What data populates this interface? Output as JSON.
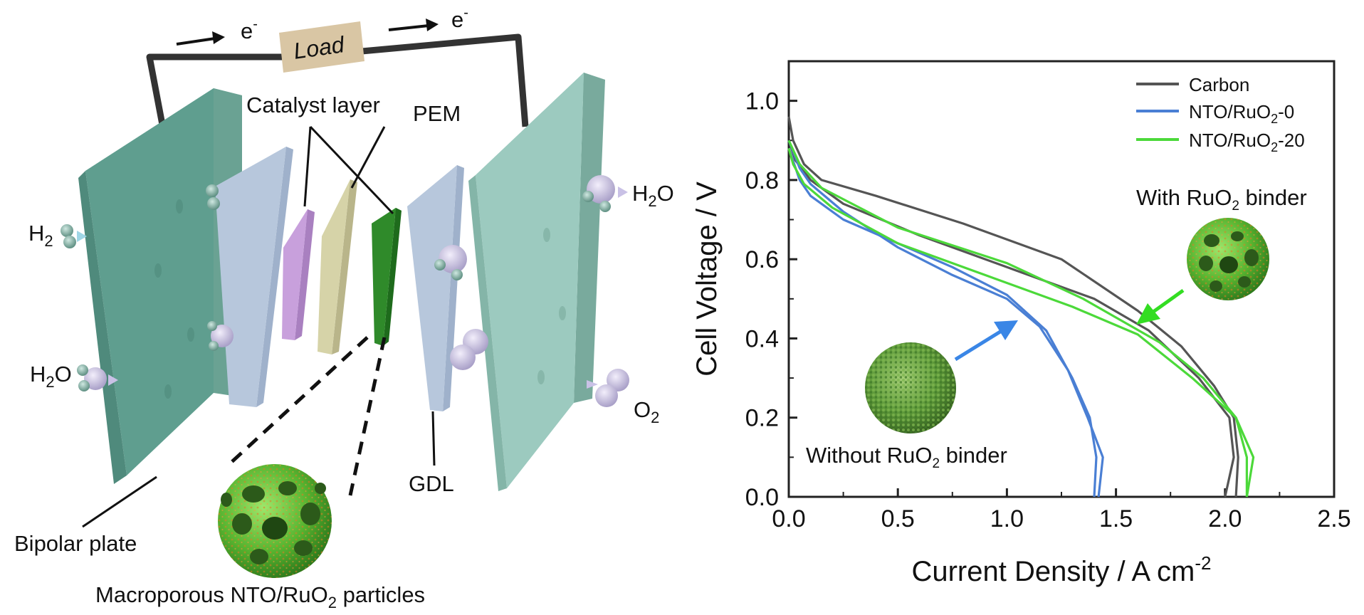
{
  "diagram": {
    "electron_label": "e",
    "electron_sup": "-",
    "load_label": "Load",
    "catalyst_layer_label": "Catalyst layer",
    "pem_label": "PEM",
    "gdl_label": "GDL",
    "bipolar_plate_label": "Bipolar plate",
    "particles_label_a": "Macroporous NTO/RuO",
    "particles_sub": "2",
    "particles_label_b": " particles",
    "h2_label": "H",
    "h2_sub": "2",
    "h2o_left_label": "H",
    "h2o_left_sub": "2",
    "h2o_left_suffix": "O",
    "h2o_right_label": "H",
    "h2o_right_sub": "2",
    "h2o_right_suffix": "O",
    "o2_label": "O",
    "o2_sub": "2",
    "colors": {
      "bipolar_plate": "#5f9e8f",
      "gdl": "#b7c7dc",
      "catalyst_anode": "#c8a0dc",
      "pem": "#d6d3a8",
      "catalyst_cathode": "#2f8a2a",
      "load_box": "#d9c6a4",
      "wire": "#333333",
      "particle_green": "#6cc43c",
      "particle_orange": "#e07b22"
    }
  },
  "chart_data": {
    "type": "line",
    "xlabel": "Current Density / A cm",
    "xlabel_sup": "-2",
    "ylabel": "Cell Voltage / V",
    "xlim": [
      0.0,
      2.5
    ],
    "ylim": [
      0.0,
      1.1
    ],
    "x_ticks": [
      "0.0",
      "0.5",
      "1.0",
      "1.5",
      "2.0",
      "2.5"
    ],
    "y_ticks": [
      "0.0",
      "0.2",
      "0.4",
      "0.6",
      "0.8",
      "1.0"
    ],
    "grid": false,
    "legend_position": "top-right",
    "series": [
      {
        "name": "Carbon",
        "name_sub": "",
        "name_suffix": "",
        "color": "#555555",
        "discharge": [
          [
            0.0,
            0.96
          ],
          [
            0.02,
            0.9
          ],
          [
            0.07,
            0.84
          ],
          [
            0.15,
            0.8
          ],
          [
            0.4,
            0.76
          ],
          [
            0.8,
            0.69
          ],
          [
            1.25,
            0.6
          ],
          [
            1.6,
            0.47
          ],
          [
            1.8,
            0.38
          ],
          [
            1.95,
            0.28
          ],
          [
            2.04,
            0.2
          ],
          [
            2.06,
            0.1
          ],
          [
            2.05,
            0.0
          ]
        ],
        "charge": [
          [
            2.0,
            0.0
          ],
          [
            2.04,
            0.1
          ],
          [
            2.02,
            0.2
          ],
          [
            1.88,
            0.3
          ],
          [
            1.65,
            0.42
          ],
          [
            1.4,
            0.5
          ],
          [
            1.0,
            0.58
          ],
          [
            0.6,
            0.66
          ],
          [
            0.25,
            0.74
          ],
          [
            0.1,
            0.8
          ],
          [
            0.03,
            0.85
          ],
          [
            0.0,
            0.9
          ]
        ]
      },
      {
        "name": "NTO/RuO",
        "name_sub": "2",
        "name_suffix": "-0",
        "color": "#4a7fd4",
        "discharge": [
          [
            0.0,
            0.9
          ],
          [
            0.05,
            0.83
          ],
          [
            0.1,
            0.79
          ],
          [
            0.25,
            0.72
          ],
          [
            0.5,
            0.63
          ],
          [
            0.75,
            0.56
          ],
          [
            1.0,
            0.5
          ],
          [
            1.15,
            0.43
          ],
          [
            1.28,
            0.32
          ],
          [
            1.37,
            0.2
          ],
          [
            1.44,
            0.1
          ],
          [
            1.42,
            0.0
          ]
        ],
        "charge": [
          [
            1.4,
            0.0
          ],
          [
            1.41,
            0.1
          ],
          [
            1.38,
            0.2
          ],
          [
            1.3,
            0.3
          ],
          [
            1.18,
            0.42
          ],
          [
            1.0,
            0.51
          ],
          [
            0.75,
            0.58
          ],
          [
            0.5,
            0.64
          ],
          [
            0.25,
            0.7
          ],
          [
            0.1,
            0.76
          ],
          [
            0.05,
            0.8
          ],
          [
            0.0,
            0.88
          ]
        ]
      },
      {
        "name": "NTO/RuO",
        "name_sub": "2",
        "name_suffix": "-20",
        "color": "#4cd93a",
        "discharge": [
          [
            0.0,
            0.9
          ],
          [
            0.05,
            0.84
          ],
          [
            0.15,
            0.78
          ],
          [
            0.5,
            0.68
          ],
          [
            1.0,
            0.59
          ],
          [
            1.35,
            0.5
          ],
          [
            1.7,
            0.39
          ],
          [
            1.9,
            0.3
          ],
          [
            2.05,
            0.2
          ],
          [
            2.13,
            0.1
          ],
          [
            2.1,
            0.0
          ]
        ],
        "charge": [
          [
            2.1,
            0.0
          ],
          [
            2.1,
            0.1
          ],
          [
            2.05,
            0.2
          ],
          [
            1.85,
            0.3
          ],
          [
            1.6,
            0.41
          ],
          [
            1.3,
            0.48
          ],
          [
            0.9,
            0.56
          ],
          [
            0.5,
            0.64
          ],
          [
            0.2,
            0.73
          ],
          [
            0.07,
            0.79
          ],
          [
            0.02,
            0.84
          ],
          [
            0.0,
            0.88
          ]
        ]
      }
    ],
    "annotations": [
      {
        "label_a": "With RuO",
        "label_sub": "2",
        "label_b": " binder",
        "points_to": [
          1.6,
          0.44
        ],
        "arrow_color": "#33dd22"
      },
      {
        "label_a": "Without RuO",
        "label_sub": "2",
        "label_b": " binder",
        "points_to": [
          1.07,
          0.45
        ],
        "arrow_color": "#3a86e6"
      }
    ]
  }
}
